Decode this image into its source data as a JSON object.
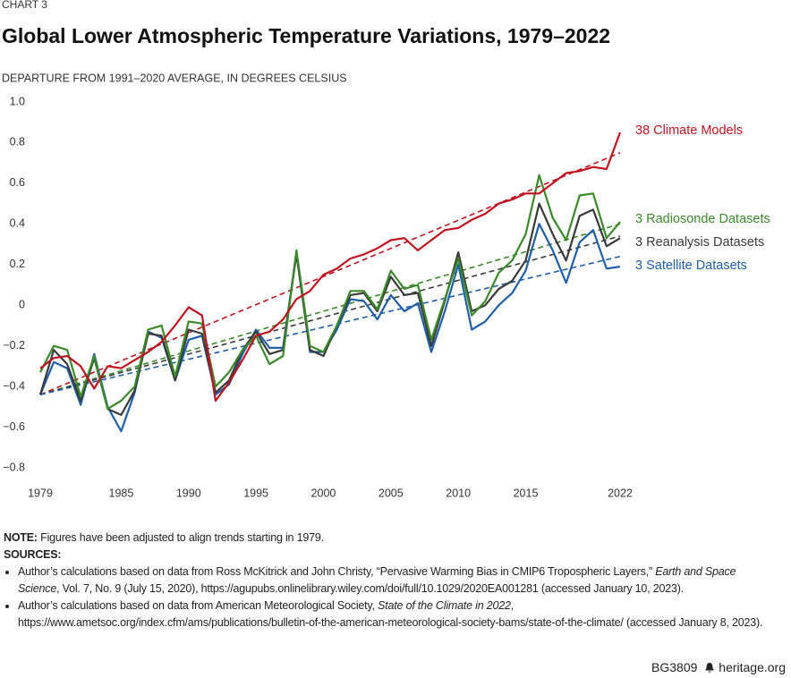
{
  "header": {
    "kicker": "CHART 3"
  },
  "chart_data": {
    "type": "line",
    "title": "Global Lower Atmospheric Temperature Variations, 1979–2022",
    "subtitle": "DEPARTURE FROM 1991–2020 AVERAGE, IN DEGREES CELSIUS",
    "x": [
      1979,
      1980,
      1981,
      1982,
      1983,
      1984,
      1985,
      1986,
      1987,
      1988,
      1989,
      1990,
      1991,
      1992,
      1993,
      1994,
      1995,
      1996,
      1997,
      1998,
      1999,
      2000,
      2001,
      2002,
      2003,
      2004,
      2005,
      2006,
      2007,
      2008,
      2009,
      2010,
      2011,
      2012,
      2013,
      2014,
      2015,
      2016,
      2017,
      2018,
      2019,
      2020,
      2021,
      2022
    ],
    "xlim": [
      1979,
      2022
    ],
    "xticks": [
      1979,
      1985,
      1990,
      1995,
      2000,
      2005,
      2010,
      2015,
      2022
    ],
    "ylim": [
      -0.8,
      1
    ],
    "yticks": [
      {
        "value": 1,
        "label": "1.0"
      },
      0.8,
      0.6,
      0.4,
      0.2,
      0,
      {
        "value": -0.2,
        "label": "−0.2"
      },
      {
        "value": -0.4,
        "label": "−0.4"
      },
      {
        "value": -0.6,
        "label": "−0.6"
      },
      {
        "value": -0.8,
        "label": "−0.8"
      }
    ],
    "grid": false,
    "series": [
      {
        "name": "38 Climate Models",
        "color": "#c0131f",
        "values": [
          -0.31,
          -0.26,
          -0.25,
          -0.3,
          -0.41,
          -0.3,
          -0.31,
          -0.27,
          -0.23,
          -0.18,
          -0.1,
          -0.01,
          -0.05,
          -0.47,
          -0.38,
          -0.27,
          -0.15,
          -0.13,
          -0.07,
          0.03,
          0.07,
          0.15,
          0.18,
          0.23,
          0.25,
          0.28,
          0.32,
          0.33,
          0.27,
          0.32,
          0.37,
          0.38,
          0.42,
          0.45,
          0.5,
          0.52,
          0.55,
          0.55,
          0.6,
          0.65,
          0.66,
          0.68,
          0.67,
          0.85
        ],
        "trend": [
          -0.44,
          0.75
        ]
      },
      {
        "name": "3 Radiosonde Datasets",
        "color": "#3a8a2a",
        "values": [
          -0.33,
          -0.2,
          -0.22,
          -0.45,
          -0.25,
          -0.51,
          -0.47,
          -0.4,
          -0.12,
          -0.1,
          -0.35,
          -0.08,
          -0.09,
          -0.4,
          -0.33,
          -0.22,
          -0.15,
          -0.29,
          -0.25,
          0.27,
          -0.2,
          -0.23,
          -0.1,
          0.07,
          0.07,
          -0.02,
          0.17,
          0.08,
          0.1,
          -0.17,
          0.03,
          0.23,
          -0.05,
          0.02,
          0.16,
          0.22,
          0.35,
          0.64,
          0.43,
          0.32,
          0.54,
          0.55,
          0.33,
          0.41
        ],
        "trend": [
          -0.44,
          0.4
        ]
      },
      {
        "name": "3 Reanalysis Datasets",
        "color": "#3a3a3a",
        "values": [
          -0.44,
          -0.22,
          -0.29,
          -0.47,
          -0.26,
          -0.51,
          -0.54,
          -0.42,
          -0.14,
          -0.15,
          -0.37,
          -0.12,
          -0.14,
          -0.43,
          -0.37,
          -0.22,
          -0.13,
          -0.24,
          -0.22,
          0.25,
          -0.22,
          -0.25,
          -0.1,
          0.05,
          0.06,
          -0.03,
          0.14,
          0.05,
          0.06,
          -0.2,
          0.02,
          0.26,
          -0.03,
          0.0,
          0.08,
          0.12,
          0.22,
          0.5,
          0.35,
          0.22,
          0.44,
          0.47,
          0.29,
          0.33
        ],
        "trend": [
          -0.44,
          0.34
        ]
      },
      {
        "name": "3 Satellite Datasets",
        "color": "#1f5fa8",
        "values": [
          -0.44,
          -0.28,
          -0.31,
          -0.49,
          -0.24,
          -0.5,
          -0.62,
          -0.43,
          -0.13,
          -0.16,
          -0.37,
          -0.17,
          -0.15,
          -0.44,
          -0.39,
          -0.24,
          -0.12,
          -0.21,
          -0.21,
          0.26,
          -0.23,
          -0.23,
          -0.12,
          0.03,
          0.02,
          -0.07,
          0.05,
          -0.03,
          0.01,
          -0.23,
          -0.03,
          0.2,
          -0.12,
          -0.08,
          0.0,
          0.06,
          0.17,
          0.4,
          0.27,
          0.11,
          0.31,
          0.37,
          0.18,
          0.19
        ],
        "trend": [
          -0.44,
          0.24
        ]
      }
    ]
  },
  "notes": {
    "note_label": "NOTE:",
    "note": "Figures have been adjusted to align trends starting in 1979.",
    "sources_label": "SOURCES:",
    "sources": [
      [
        "Author’s calculations based on data from Ross McKitrick and John Christy, “Pervasive Warming Bias in CMIP6 Tropospheric Layers,”",
        "Earth and Space Science",
        ", Vol. 7, No. 9 (July 15, 2020), https://agupubs.onlinelibrary.wiley.com/doi/full/10.1029/2020EA001281 (accessed January 10, 2023)."
      ],
      [
        "Author’s calculations based on data from American Meteorological Society,",
        "State of the Climate in 2022",
        ", https://www.ametsoc.org/index.cfm/ams/publications/bulletin-of-the-american-meteorological-society-bams/state-of-the-climate/ (accessed January 8, 2023)."
      ]
    ]
  },
  "footer": {
    "code": "BG3809",
    "site": "heritage.org"
  }
}
